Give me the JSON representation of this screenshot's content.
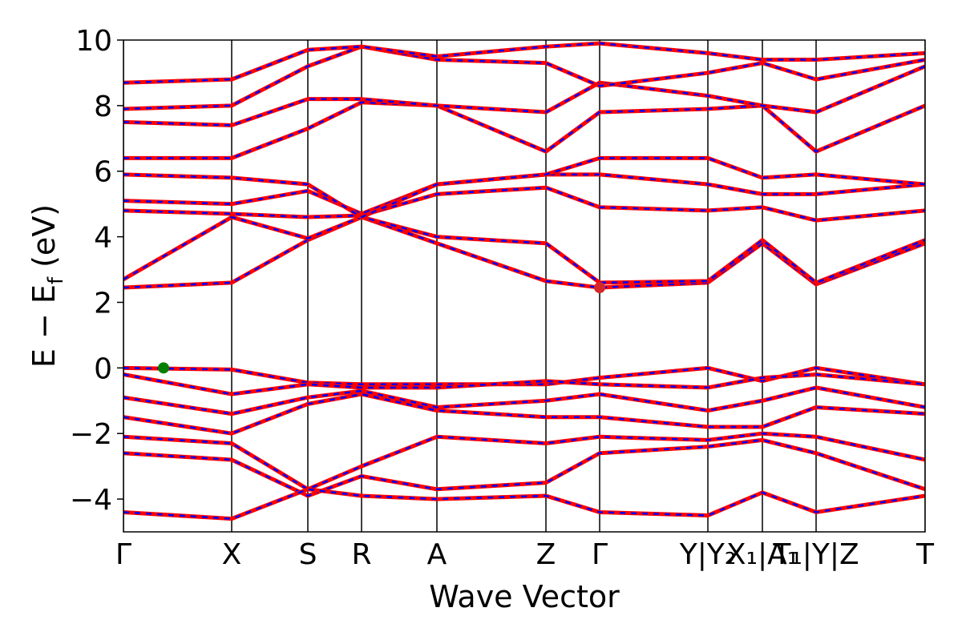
{
  "chart_data": {
    "type": "line",
    "xlabel": "Wave Vector",
    "ylabel_parts": [
      "E − E",
      "f",
      " (eV)"
    ],
    "xlim": [
      0,
      1
    ],
    "ylim": [
      -5,
      10
    ],
    "yticks": [
      {
        "value": -4,
        "label": "−4"
      },
      {
        "value": -2,
        "label": "−2"
      },
      0,
      2,
      4,
      6,
      8,
      10
    ],
    "xticks": [
      {
        "value": 0,
        "label": "Γ"
      },
      {
        "value": 0.135,
        "label": "X"
      },
      {
        "value": 0.23,
        "label": "S"
      },
      {
        "value": 0.297,
        "label": "R"
      },
      {
        "value": 0.391,
        "label": "A"
      },
      {
        "value": 0.527,
        "label": "Z"
      },
      {
        "value": 0.594,
        "label": "Γ"
      },
      {
        "value": 0.729,
        "label": "Y|Y₂"
      },
      {
        "value": 0.797,
        "label": "X₁|A₁"
      },
      {
        "value": 0.864,
        "label": "T₁|Y|Z"
      },
      {
        "value": 1,
        "label": "T"
      }
    ],
    "line_color": "#ff0000",
    "dash_color": "#0000ff",
    "x": [
      0,
      0.135,
      0.23,
      0.297,
      0.391,
      0.527,
      0.594,
      0.729,
      0.797,
      0.864,
      1.0
    ],
    "series": [
      {
        "values": [
          0,
          -0.05,
          -0.45,
          -0.5,
          -0.5,
          -0.5,
          -0.3,
          0,
          -0.4,
          0,
          -0.5
        ]
      },
      {
        "values": [
          -0.2,
          -0.8,
          -0.5,
          -0.6,
          -0.6,
          -0.4,
          -0.5,
          -0.6,
          -0.3,
          -0.2,
          -0.5
        ]
      },
      {
        "values": [
          -0.9,
          -1.4,
          -0.9,
          -0.7,
          -1.2,
          -1.0,
          -0.8,
          -1.3,
          -1.0,
          -0.6,
          -1.2
        ]
      },
      {
        "values": [
          -1.5,
          -2.0,
          -1.1,
          -0.8,
          -1.3,
          -1.5,
          -1.5,
          -1.8,
          -1.8,
          -1.2,
          -1.4
        ]
      },
      {
        "values": [
          -2.1,
          -2.3,
          -3.7,
          -3.0,
          -2.1,
          -2.3,
          -2.1,
          -2.2,
          -2.0,
          -2.1,
          -2.8
        ]
      },
      {
        "values": [
          -2.6,
          -2.8,
          -3.9,
          -3.3,
          -3.7,
          -3.5,
          -2.6,
          -2.4,
          -2.2,
          -2.6,
          -3.7
        ]
      },
      {
        "values": [
          -4.4,
          -4.6,
          -3.7,
          -3.9,
          -4.0,
          -3.9,
          -4.4,
          -4.5,
          -3.8,
          -4.4,
          -3.9
        ]
      },
      {
        "values": [
          2.45,
          2.6,
          3.9,
          4.6,
          3.8,
          2.65,
          2.45,
          2.6,
          3.8,
          2.55,
          3.8
        ]
      },
      {
        "values": [
          2.7,
          4.6,
          3.95,
          4.6,
          4.0,
          3.8,
          2.6,
          2.65,
          3.9,
          2.6,
          3.9
        ]
      },
      {
        "values": [
          4.8,
          4.7,
          4.6,
          4.65,
          5.3,
          5.5,
          4.9,
          4.8,
          4.9,
          4.5,
          4.8
        ]
      },
      {
        "values": [
          5.1,
          5.0,
          5.4,
          4.7,
          5.6,
          5.9,
          5.9,
          5.6,
          5.3,
          5.3,
          5.6
        ]
      },
      {
        "values": [
          5.9,
          5.8,
          5.6,
          4.6,
          5.6,
          5.9,
          6.4,
          6.4,
          5.8,
          5.9,
          5.6
        ]
      },
      {
        "values": [
          6.4,
          6.4,
          7.3,
          8.1,
          8.0,
          6.6,
          7.8,
          7.9,
          8.0,
          6.6,
          8.0
        ]
      },
      {
        "values": [
          7.5,
          7.4,
          8.2,
          8.2,
          8.0,
          7.8,
          8.7,
          8.3,
          8.0,
          7.8,
          9.2
        ]
      },
      {
        "values": [
          7.9,
          8.0,
          9.2,
          9.8,
          9.4,
          9.3,
          8.6,
          9.0,
          9.3,
          8.8,
          9.4
        ]
      },
      {
        "values": [
          8.7,
          8.8,
          9.7,
          9.8,
          9.5,
          9.8,
          9.9,
          9.6,
          9.4,
          9.4,
          9.6
        ]
      }
    ],
    "points": [
      {
        "x": 0.05,
        "y": 0,
        "color": "#008000"
      },
      {
        "x": 0.594,
        "y": 2.45,
        "color": "#d62728"
      }
    ]
  }
}
